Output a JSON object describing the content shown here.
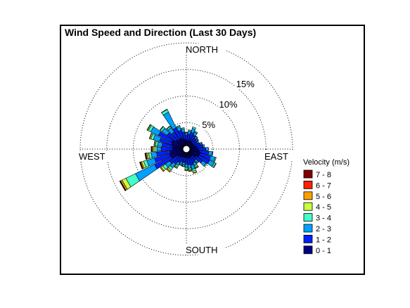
{
  "chart_data": {
    "type": "wind-rose",
    "title": "Wind Speed and Direction (Last 30 Days)",
    "directions": {
      "north": "NORTH",
      "east": "EAST",
      "south": "SOUTH",
      "west": "WEST"
    },
    "radial_ticks": [
      {
        "value": 5,
        "label": "5%"
      },
      {
        "value": 10,
        "label": "10%"
      },
      {
        "value": 15,
        "label": "15%"
      }
    ],
    "rmax": 20,
    "legend": {
      "title": "Velocity (m/s)",
      "placement": "right",
      "bins": [
        {
          "label": "7 - 8",
          "color": "#800000"
        },
        {
          "label": "6 - 7",
          "color": "#ff2000"
        },
        {
          "label": "5 - 6",
          "color": "#ffa000"
        },
        {
          "label": "4 - 5",
          "color": "#c8ff40"
        },
        {
          "label": "3 - 4",
          "color": "#40ffc8"
        },
        {
          "label": "2 - 3",
          "color": "#00a0ff"
        },
        {
          "label": "1 - 2",
          "color": "#0020ff"
        },
        {
          "label": "0 - 1",
          "color": "#000080"
        }
      ]
    },
    "sectors": [
      {
        "dir": 0,
        "values": [
          1.0,
          1.0,
          0.4,
          0.1,
          0,
          0,
          0,
          0
        ]
      },
      {
        "dir": 10,
        "values": [
          1.0,
          1.2,
          0.6,
          0.2,
          0,
          0,
          0,
          0
        ]
      },
      {
        "dir": 20,
        "values": [
          1.2,
          1.4,
          0.8,
          0.3,
          0,
          0,
          0,
          0
        ]
      },
      {
        "dir": 30,
        "values": [
          1.0,
          1.3,
          0.6,
          0.2,
          0,
          0,
          0,
          0
        ]
      },
      {
        "dir": 40,
        "values": [
          0.9,
          1.0,
          0.4,
          0.1,
          0,
          0,
          0,
          0
        ]
      },
      {
        "dir": 50,
        "values": [
          0.9,
          0.9,
          0.3,
          0.1,
          0,
          0,
          0,
          0
        ]
      },
      {
        "dir": 60,
        "values": [
          0.9,
          0.8,
          0.3,
          0,
          0,
          0,
          0,
          0
        ]
      },
      {
        "dir": 70,
        "values": [
          1.1,
          1.0,
          0.3,
          0.1,
          0,
          0,
          0,
          0
        ]
      },
      {
        "dir": 80,
        "values": [
          1.3,
          1.2,
          0.3,
          0,
          0,
          0,
          0,
          0
        ]
      },
      {
        "dir": 90,
        "values": [
          1.5,
          1.5,
          0.5,
          0,
          0,
          0,
          0,
          0
        ]
      },
      {
        "dir": 100,
        "values": [
          1.8,
          1.8,
          0.7,
          0.1,
          0,
          0,
          0,
          0
        ]
      },
      {
        "dir": 110,
        "values": [
          2.0,
          2.1,
          0.9,
          0.2,
          0,
          0,
          0,
          0
        ]
      },
      {
        "dir": 120,
        "values": [
          2.0,
          2.2,
          1.0,
          0.3,
          0.1,
          0,
          0,
          0
        ]
      },
      {
        "dir": 130,
        "values": [
          1.5,
          1.6,
          0.8,
          0.2,
          0,
          0,
          0,
          0
        ]
      },
      {
        "dir": 140,
        "values": [
          1.0,
          1.0,
          0.4,
          0.2,
          0.1,
          0,
          0,
          0
        ]
      },
      {
        "dir": 150,
        "values": [
          1.0,
          1.2,
          0.6,
          0.3,
          0.2,
          0.1,
          0,
          0
        ]
      },
      {
        "dir": 160,
        "values": [
          1.1,
          1.4,
          0.8,
          0.4,
          0.3,
          0.1,
          0,
          0
        ]
      },
      {
        "dir": 170,
        "values": [
          1.0,
          1.3,
          0.7,
          0.3,
          0.2,
          0.1,
          0,
          0
        ]
      },
      {
        "dir": 180,
        "values": [
          1.0,
          1.2,
          0.6,
          0.3,
          0.2,
          0.1,
          0,
          0
        ]
      },
      {
        "dir": 190,
        "values": [
          0.9,
          1.0,
          0.5,
          0.2,
          0.1,
          0,
          0,
          0
        ]
      },
      {
        "dir": 200,
        "values": [
          0.9,
          1.0,
          0.4,
          0.2,
          0.1,
          0,
          0,
          0
        ]
      },
      {
        "dir": 210,
        "values": [
          1.0,
          1.2,
          0.6,
          0.3,
          0.2,
          0.1,
          0,
          0
        ]
      },
      {
        "dir": 220,
        "values": [
          1.2,
          1.6,
          0.9,
          0.5,
          0.3,
          0.2,
          0,
          0
        ]
      },
      {
        "dir": 230,
        "values": [
          1.4,
          1.8,
          1.0,
          0.6,
          0.4,
          0.2,
          0,
          0
        ]
      },
      {
        "dir": 240,
        "values": [
          2.5,
          3.5,
          4.0,
          2.0,
          0.8,
          0.3,
          0.1,
          0.1
        ]
      },
      {
        "dir": 250,
        "values": [
          2.6,
          3.0,
          1.5,
          0.6,
          0.4,
          0.2,
          0.1,
          0.1
        ]
      },
      {
        "dir": 260,
        "values": [
          2.4,
          2.6,
          1.0,
          0.5,
          0.3,
          0.2,
          0.1,
          0.1
        ]
      },
      {
        "dir": 270,
        "values": [
          2.0,
          2.1,
          0.8,
          0.4,
          0.3,
          0.2,
          0.1,
          0.1
        ]
      },
      {
        "dir": 280,
        "values": [
          2.0,
          2.0,
          0.8,
          0.4,
          0.2,
          0.1,
          0,
          0
        ]
      },
      {
        "dir": 290,
        "values": [
          2.2,
          2.4,
          1.2,
          0.5,
          0.2,
          0.1,
          0,
          0
        ]
      },
      {
        "dir": 300,
        "values": [
          2.4,
          2.8,
          1.6,
          0.5,
          0.2,
          0.1,
          0,
          0
        ]
      },
      {
        "dir": 310,
        "values": [
          1.8,
          2.0,
          1.2,
          0.4,
          0.1,
          0,
          0,
          0
        ]
      },
      {
        "dir": 320,
        "values": [
          1.5,
          1.8,
          1.0,
          0.3,
          0.1,
          0,
          0,
          0
        ]
      },
      {
        "dir": 330,
        "values": [
          1.6,
          2.2,
          3.3,
          0.5,
          0.1,
          0,
          0,
          0
        ]
      },
      {
        "dir": 340,
        "values": [
          1.4,
          1.6,
          0.8,
          0.2,
          0,
          0,
          0,
          0
        ]
      },
      {
        "dir": 350,
        "values": [
          1.2,
          1.4,
          0.6,
          0.2,
          0,
          0,
          0,
          0
        ]
      }
    ]
  }
}
